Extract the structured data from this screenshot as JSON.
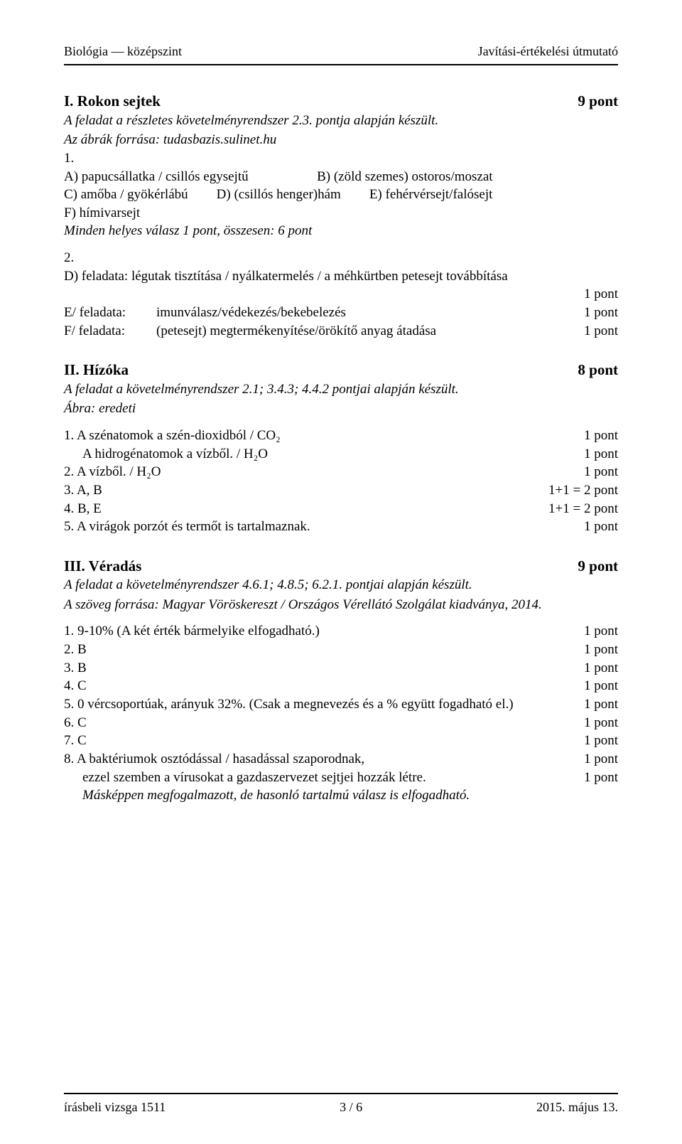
{
  "header": {
    "left": "Biológia — középszint",
    "right": "Javítási-értékelési útmutató"
  },
  "section1": {
    "title": "I. Rokon sejtek",
    "points": "9 pont",
    "sub1": "A feladat a részletes követelményrendszer 2.3. pontja alapján készült.",
    "sub2": "Az ábrák forrása: tudasbazis.sulinet.hu",
    "q1_num": "1.",
    "q1_a": "A) papucsállatka / csillós egysejtű",
    "q1_b": "B) (zöld szemes) ostoros/moszat",
    "q1_c": "C) amőba / gyökérlábú",
    "q1_d": "D) (csillós henger)hám",
    "q1_e": "E) fehérvérsejt/falósejt",
    "q1_f": "F) hímivarsejt",
    "q1_summary": "Minden helyes válasz 1 pont, összesen: 6 pont",
    "q2_num": "2.",
    "q2_d": "D) feladata: légutak tisztítása / nyálkatermelés / a méhkürtben petesejt továbbítása",
    "q2_d_pts": "1 pont",
    "q2_e_label": "E/ feladata:",
    "q2_e_text": "imunválasz/védekezés/bekebelezés",
    "q2_e_pts": "1 pont",
    "q2_f_label": "F/ feladata:",
    "q2_f_text": "(petesejt) megtermékenyítése/örökítő anyag átadása",
    "q2_f_pts": "1 pont"
  },
  "section2": {
    "title": "II. Hízóka",
    "points": "8 pont",
    "sub1": "A feladat a követelményrendszer 2.1; 3.4.3; 4.4.2 pontjai alapján készült.",
    "sub2": "Ábra: eredeti",
    "items": [
      {
        "n": "1.",
        "text": "A szénatomok a szén-dioxidból / CO₂",
        "pts": "1 pont"
      },
      {
        "n": "",
        "text": "A hidrogénatomok a vízből. / H₂O",
        "pts": "1 pont"
      },
      {
        "n": "2.",
        "text": "A vízből. / H₂O",
        "pts": "1 pont"
      },
      {
        "n": "3.",
        "text": "A, B",
        "pts": "1+1 =  2 pont"
      },
      {
        "n": "4.",
        "text": "B, E",
        "pts": "1+1 =  2 pont"
      },
      {
        "n": "5.",
        "text": "A virágok porzót és termőt is tartalmaznak.",
        "pts": "1 pont"
      }
    ]
  },
  "section3": {
    "title": "III. Véradás",
    "points": "9 pont",
    "sub1": "A feladat a követelményrendszer 4.6.1; 4.8.5; 6.2.1. pontjai alapján készült.",
    "sub2": "A szöveg forrása: Magyar Vöröskereszt / Országos Vérellátó Szolgálat kiadványa, 2014.",
    "items": [
      {
        "n": "1.",
        "text": "9-10% (A két érték bármelyike elfogadható.)",
        "pts": "1 pont"
      },
      {
        "n": "2.",
        "text": "B",
        "pts": "1 pont"
      },
      {
        "n": "3.",
        "text": "B",
        "pts": "1 pont"
      },
      {
        "n": "4.",
        "text": "C",
        "pts": "1 pont"
      },
      {
        "n": "5.",
        "text": "0 vércsoportúak, arányuk 32%. (Csak a megnevezés és a % együtt fogadható el.)",
        "pts": "1 pont"
      },
      {
        "n": "6.",
        "text": "C",
        "pts": "1 pont"
      },
      {
        "n": "7.",
        "text": "C",
        "pts": "1 pont"
      },
      {
        "n": "8.",
        "text": "A baktériumok osztódással / hasadással szaporodnak,",
        "pts": "1 pont"
      }
    ],
    "extra_line": "ezzel szemben a vírusokat a gazdaszervezet sejtjei hozzák létre.",
    "extra_pts": "1 pont",
    "note": "Másképpen megfogalmazott, de hasonló tartalmú válasz is elfogadható."
  },
  "footer": {
    "left": "írásbeli vizsga 1511",
    "center": "3 / 6",
    "right": "2015. május 13."
  }
}
